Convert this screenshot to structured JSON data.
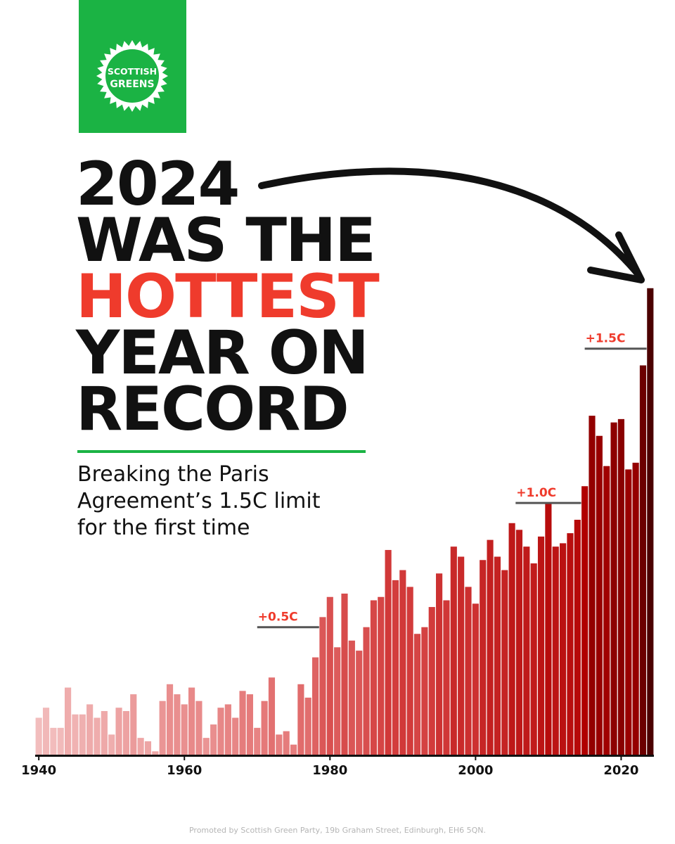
{
  "logo": {
    "line1": "SCOTTISH",
    "line2": "GREENS"
  },
  "headline": {
    "line1": "2024",
    "line2": "WAS THE",
    "line3": "HOTTEST",
    "line4": "YEAR ON",
    "line5": "RECORD"
  },
  "subtitle": {
    "line1": "Breaking the Paris",
    "line2": "Agreement’s 1.5C limit",
    "line3": "for the first time"
  },
  "colors": {
    "brand_green": "#1bb344",
    "accent_red": "#ef3b2c",
    "text": "#111111"
  },
  "footer": "Promoted by Scottish Green Party, 19b Graham Street, Edinburgh, EH6 5QN.",
  "chart_data": {
    "type": "bar",
    "x": [
      1940,
      1941,
      1942,
      1943,
      1944,
      1945,
      1946,
      1947,
      1948,
      1949,
      1950,
      1951,
      1952,
      1953,
      1954,
      1955,
      1956,
      1957,
      1958,
      1959,
      1960,
      1961,
      1962,
      1963,
      1964,
      1965,
      1966,
      1967,
      1968,
      1969,
      1970,
      1971,
      1972,
      1973,
      1974,
      1975,
      1976,
      1977,
      1978,
      1979,
      1980,
      1981,
      1982,
      1983,
      1984,
      1985,
      1986,
      1987,
      1988,
      1989,
      1990,
      1991,
      1992,
      1993,
      1994,
      1995,
      1996,
      1997,
      1998,
      1999,
      2000,
      2001,
      2002,
      2003,
      2004,
      2005,
      2006,
      2007,
      2008,
      2009,
      2010,
      2011,
      2012,
      2013,
      2014,
      2015,
      2016,
      2017,
      2018,
      2019,
      2020,
      2021,
      2022,
      2023,
      2024
    ],
    "values": [
      0.11,
      0.14,
      0.08,
      0.08,
      0.2,
      0.12,
      0.12,
      0.15,
      0.11,
      0.13,
      0.06,
      0.14,
      0.13,
      0.18,
      0.05,
      0.04,
      0.01,
      0.16,
      0.21,
      0.18,
      0.15,
      0.2,
      0.16,
      0.05,
      0.09,
      0.14,
      0.15,
      0.11,
      0.19,
      0.18,
      0.08,
      0.16,
      0.23,
      0.06,
      0.07,
      0.03,
      0.21,
      0.17,
      0.29,
      0.41,
      0.47,
      0.32,
      0.48,
      0.34,
      0.31,
      0.38,
      0.46,
      0.47,
      0.61,
      0.52,
      0.55,
      0.5,
      0.36,
      0.38,
      0.44,
      0.54,
      0.46,
      0.62,
      0.59,
      0.5,
      0.45,
      0.58,
      0.64,
      0.59,
      0.55,
      0.69,
      0.67,
      0.62,
      0.57,
      0.65,
      0.75,
      0.62,
      0.63,
      0.66,
      0.7,
      0.8,
      1.01,
      0.95,
      0.86,
      0.99,
      1.0,
      0.85,
      0.87,
      1.16,
      1.39
    ],
    "xticks": [
      1940,
      1960,
      1980,
      2000,
      2020
    ],
    "xtick_labels": [
      "1940",
      "1960",
      "1980",
      "2000",
      "2020"
    ],
    "annotations": [
      {
        "label": "+0.5C",
        "value": 0.38,
        "x_start": 1970.5,
        "x_end": 1979
      },
      {
        "label": "+1.0C",
        "value": 0.75,
        "x_start": 2006,
        "x_end": 2015
      },
      {
        "label": "+1.5C",
        "value": 1.21,
        "x_start": 2015.5,
        "x_end": 2024
      }
    ],
    "ylim": [
      0,
      1.4
    ],
    "title": "",
    "xlabel": "",
    "ylabel": "",
    "grid": false,
    "color_scale": [
      "#f4c8c8",
      "#e57a7a",
      "#d23a3a",
      "#b00000",
      "#4a0000"
    ]
  }
}
